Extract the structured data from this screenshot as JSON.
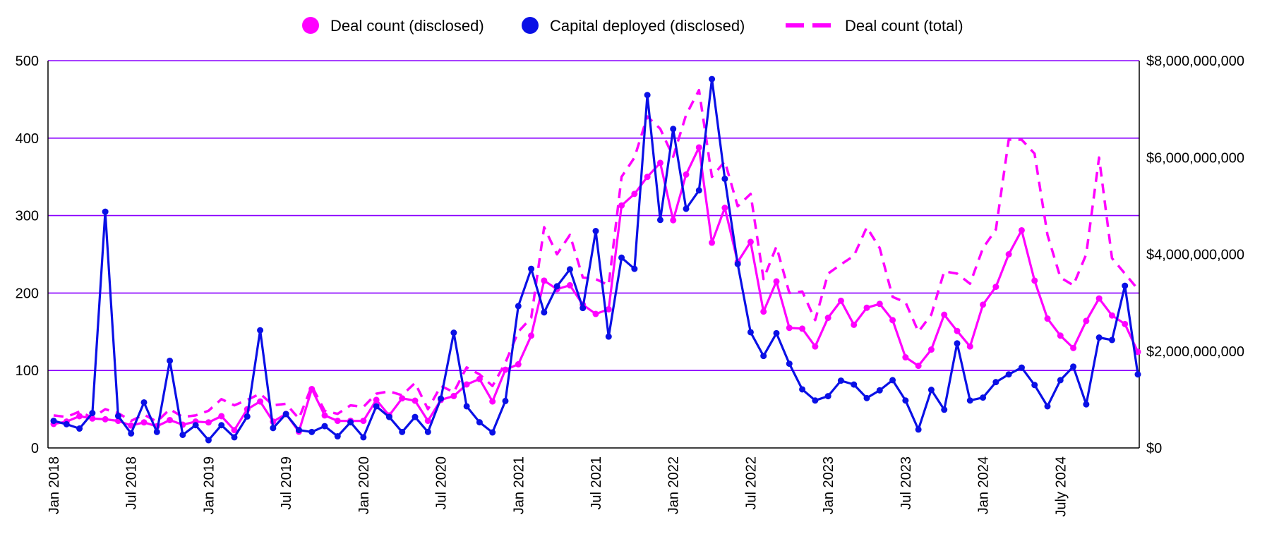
{
  "chart_data": {
    "type": "line",
    "title": "",
    "xlabel": "",
    "ylabel": "",
    "legend_position": "top-center",
    "grid": true,
    "colors": {
      "deal_count_disclosed": "#ff00ff",
      "capital_deployed": "#0a10e6",
      "deal_count_total": "#ff00ff",
      "gridline": "#8a00ff"
    },
    "x_tick_labels": [
      "Jan 2018",
      "Jul 2018",
      "Jan 2019",
      "Jul 2019",
      "Jan 2020",
      "Jul 2020",
      "Jan 2021",
      "Jul 2021",
      "Jan 2022",
      "Jul 2022",
      "Jan 2023",
      "Jul 2023",
      "Jan 2024",
      "July 2024"
    ],
    "y_left": {
      "ylim": [
        0,
        500
      ],
      "tick_labels": [
        "0",
        "100",
        "200",
        "300",
        "400",
        "500"
      ]
    },
    "y_right": {
      "ylim": [
        0,
        8000000000
      ],
      "tick_labels": [
        "$0",
        "$2,000,000,000",
        "$4,000,000,000",
        "$6,000,000,000",
        "$8,000,000,000"
      ]
    },
    "series": [
      {
        "name": "Deal count (disclosed)",
        "axis": "left",
        "style": "solid-dots",
        "values": [
          31,
          34,
          41,
          38,
          37,
          35,
          29,
          33,
          28,
          36,
          30,
          34,
          33,
          41,
          23,
          50,
          60,
          34,
          44,
          21,
          76,
          42,
          35,
          35,
          35,
          62,
          42,
          64,
          61,
          35,
          62,
          67,
          82,
          89,
          60,
          101,
          108,
          145,
          216,
          205,
          210,
          185,
          173,
          179,
          313,
          328,
          350,
          368,
          294,
          353,
          388,
          265,
          310,
          240,
          266,
          176,
          215,
          155,
          154,
          131,
          168,
          190,
          159,
          181,
          186,
          165,
          117,
          106,
          127,
          172,
          151,
          131,
          185,
          208,
          250,
          281,
          216,
          167,
          145,
          129,
          164,
          193,
          171,
          160,
          124
        ]
      },
      {
        "name": "Capital deployed (disclosed)",
        "axis": "right",
        "style": "solid-dots",
        "values": [
          560000000,
          490000000,
          400000000,
          720000000,
          4880000000,
          660000000,
          300000000,
          940000000,
          330000000,
          1800000000,
          270000000,
          470000000,
          160000000,
          470000000,
          220000000,
          650000000,
          2430000000,
          410000000,
          700000000,
          370000000,
          330000000,
          450000000,
          240000000,
          530000000,
          220000000,
          860000000,
          640000000,
          330000000,
          640000000,
          330000000,
          1020000000,
          2380000000,
          860000000,
          530000000,
          320000000,
          970000000,
          2930000000,
          3700000000,
          2800000000,
          3340000000,
          3690000000,
          2890000000,
          4480000000,
          2300000000,
          3930000000,
          3700000000,
          7290000000,
          4710000000,
          6590000000,
          4940000000,
          5320000000,
          7620000000,
          5560000000,
          3800000000,
          2390000000,
          1900000000,
          2370000000,
          1740000000,
          1210000000,
          980000000,
          1070000000,
          1390000000,
          1310000000,
          1030000000,
          1190000000,
          1400000000,
          980000000,
          380000000,
          1200000000,
          790000000,
          2160000000,
          980000000,
          1040000000,
          1360000000,
          1520000000,
          1660000000,
          1300000000,
          860000000,
          1400000000,
          1680000000,
          900000000,
          2280000000,
          2230000000,
          3350000000,
          1520000000
        ]
      },
      {
        "name": "Deal count (total)",
        "axis": "left",
        "style": "dashed",
        "values": [
          42,
          40,
          47,
          39,
          50,
          45,
          35,
          43,
          34,
          50,
          40,
          42,
          48,
          63,
          55,
          62,
          70,
          55,
          57,
          38,
          80,
          48,
          44,
          55,
          53,
          70,
          73,
          68,
          84,
          50,
          80,
          72,
          104,
          95,
          80,
          110,
          150,
          168,
          285,
          250,
          275,
          220,
          218,
          210,
          350,
          375,
          428,
          412,
          376,
          430,
          462,
          350,
          370,
          312,
          328,
          218,
          260,
          200,
          202,
          165,
          225,
          237,
          248,
          285,
          258,
          195,
          188,
          150,
          172,
          228,
          225,
          212,
          258,
          282,
          398,
          398,
          380,
          275,
          220,
          210,
          250,
          375,
          245,
          225,
          205
        ]
      }
    ]
  }
}
